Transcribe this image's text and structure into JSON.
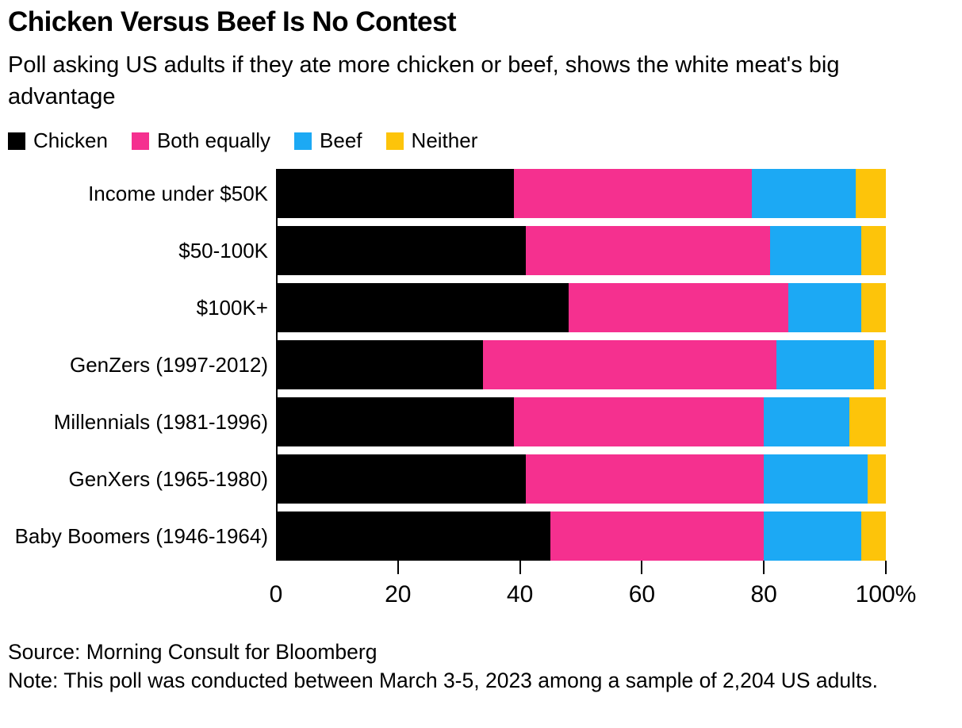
{
  "header": {
    "title": "Chicken Versus Beef Is No Contest",
    "subtitle": "Poll asking US adults if they ate more chicken or beef, shows the white meat's big advantage"
  },
  "legend": {
    "items": [
      {
        "label": "Chicken",
        "color": "#000000"
      },
      {
        "label": "Both equally",
        "color": "#f5308f"
      },
      {
        "label": "Beef",
        "color": "#1ca9f4"
      },
      {
        "label": "Neither",
        "color": "#fdc40a"
      }
    ]
  },
  "chart_data": {
    "type": "bar",
    "orientation": "horizontal",
    "stacked": true,
    "title": "Chicken Versus Beef Is No Contest",
    "subtitle": "Poll asking US adults if they ate more chicken or beef, shows the white meat's big advantage",
    "categories": [
      "Income under $50K",
      "$50-100K",
      "$100K+",
      "GenZers (1997-2012)",
      "Millennials (1981-1996)",
      "GenXers (1965-1980)",
      "Baby Boomers (1946-1964)"
    ],
    "series": [
      {
        "name": "Chicken",
        "color": "#000000",
        "values": [
          39,
          41,
          48,
          34,
          39,
          41,
          45
        ]
      },
      {
        "name": "Both equally",
        "color": "#f5308f",
        "values": [
          39,
          40,
          36,
          48,
          41,
          39,
          35
        ]
      },
      {
        "name": "Beef",
        "color": "#1ca9f4",
        "values": [
          17,
          15,
          12,
          16,
          14,
          17,
          16
        ]
      },
      {
        "name": "Neither",
        "color": "#fdc40a",
        "values": [
          5,
          4,
          4,
          2,
          6,
          3,
          4
        ]
      }
    ],
    "unit": "%",
    "xlim": [
      0,
      100
    ],
    "x_ticks": [
      0,
      20,
      40,
      60,
      80,
      100
    ],
    "x_tick_labels": [
      "0",
      "20",
      "40",
      "60",
      "80",
      "100%"
    ],
    "grid": false,
    "legend_position": "top"
  },
  "footer": {
    "source": "Source: Morning Consult for Bloomberg",
    "note": "Note: This poll was conducted between March 3-5, 2023 among a sample of 2,204 US adults."
  }
}
